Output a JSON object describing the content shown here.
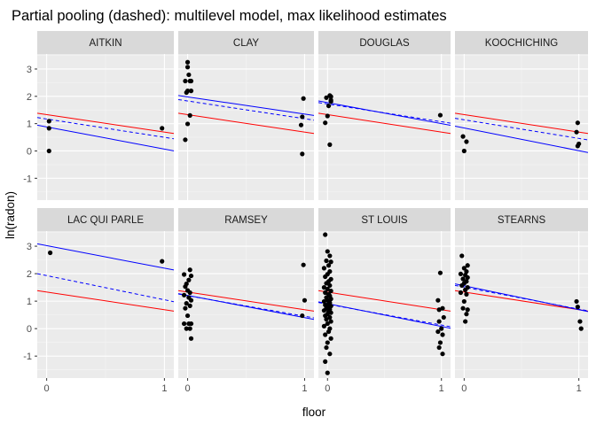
{
  "chart_data": {
    "type": "scatter",
    "title": "Partial pooling (dashed): multilevel model, max likelihood estimates",
    "xlabel": "floor",
    "ylabel": "ln(radon)",
    "xlim": [
      -0.08,
      1.08
    ],
    "ylim": [
      -1.8,
      3.55
    ],
    "x_ticks": [
      0,
      1
    ],
    "y_ticks": [
      -1,
      0,
      1,
      2,
      3
    ],
    "grid": true,
    "facet_layout": "2 rows x 4 columns, shared axes",
    "colors": {
      "points": "#000000",
      "complete_pooling": "#ff0000",
      "no_pooling": "#0000ff",
      "partial_pooling": "#0000ff",
      "panel_background": "#ebebeb",
      "strip_background": "#d9d9d9",
      "grid_major": "#ffffff"
    },
    "line_styles": {
      "complete_pooling": "solid",
      "no_pooling": "solid",
      "partial_pooling": "dashed"
    },
    "panels": [
      {
        "county": "AITKIN",
        "complete_pooling": [
          1.33,
          0.69
        ],
        "no_pooling": [
          0.88,
          0.07
        ],
        "partial_pooling": [
          1.17,
          0.5
        ],
        "points": [
          [
            0.02,
            1.09
          ],
          [
            0.02,
            0.83
          ],
          [
            0.02,
            0.0
          ],
          [
            0.98,
            0.83
          ]
        ]
      },
      {
        "county": "CLAY",
        "complete_pooling": [
          1.33,
          0.69
        ],
        "no_pooling": [
          1.98,
          1.35
        ],
        "partial_pooling": [
          1.83,
          1.18
        ],
        "points": [
          [
            0.0,
            3.25
          ],
          [
            0.0,
            3.07
          ],
          [
            0.01,
            2.79
          ],
          [
            0.02,
            2.56
          ],
          [
            0.03,
            2.56
          ],
          [
            -0.02,
            2.56
          ],
          [
            0.0,
            2.2
          ],
          [
            0.03,
            2.2
          ],
          [
            -0.01,
            2.14
          ],
          [
            0.02,
            1.3
          ],
          [
            0.0,
            0.99
          ],
          [
            -0.02,
            0.41
          ],
          [
            0.99,
            1.92
          ],
          [
            0.98,
            1.25
          ],
          [
            0.97,
            0.95
          ],
          [
            0.98,
            -0.11
          ]
        ]
      },
      {
        "county": "DOUGLAS",
        "complete_pooling": [
          1.33,
          0.69
        ],
        "no_pooling": [
          1.77,
          1.0
        ],
        "partial_pooling": [
          1.72,
          1.07
        ],
        "points": [
          [
            0.02,
            2.03
          ],
          [
            0.03,
            1.99
          ],
          [
            -0.01,
            1.95
          ],
          [
            0.03,
            1.86
          ],
          [
            0.03,
            1.81
          ],
          [
            0.01,
            1.65
          ],
          [
            0.0,
            1.28
          ],
          [
            -0.02,
            1.03
          ],
          [
            0.02,
            0.23
          ],
          [
            0.99,
            1.31
          ]
        ]
      },
      {
        "county": "KOOCHICHING",
        "complete_pooling": [
          1.33,
          0.69
        ],
        "no_pooling": [
          0.84,
          0.01
        ],
        "partial_pooling": [
          1.14,
          0.46
        ],
        "points": [
          [
            -0.01,
            0.53
          ],
          [
            0.02,
            0.34
          ],
          [
            0.0,
            0.0
          ],
          [
            0.99,
            1.03
          ],
          [
            0.98,
            0.69
          ],
          [
            1.0,
            0.26
          ],
          [
            0.99,
            0.18
          ]
        ]
      },
      {
        "county": "LAC QUI PARLE",
        "complete_pooling": [
          1.33,
          0.69
        ],
        "no_pooling": [
          3.02,
          2.2
        ],
        "partial_pooling": [
          1.93,
          1.05
        ],
        "points": [
          [
            0.03,
            2.76
          ],
          [
            0.98,
            2.45
          ]
        ]
      },
      {
        "county": "RAMSEY",
        "complete_pooling": [
          1.33,
          0.69
        ],
        "no_pooling": [
          1.21,
          0.4
        ],
        "partial_pooling": [
          1.2,
          0.45
        ],
        "points": [
          [
            -0.03,
            1.97
          ],
          [
            0.02,
            2.14
          ],
          [
            -0.01,
            1.63
          ],
          [
            0.03,
            1.92
          ],
          [
            0.01,
            1.77
          ],
          [
            -0.02,
            1.53
          ],
          [
            0.0,
            1.39
          ],
          [
            0.02,
            1.31
          ],
          [
            -0.03,
            1.22
          ],
          [
            0.01,
            1.13
          ],
          [
            0.03,
            1.03
          ],
          [
            -0.01,
            0.92
          ],
          [
            0.02,
            0.83
          ],
          [
            -0.02,
            0.74
          ],
          [
            0.0,
            0.47
          ],
          [
            -0.03,
            0.18
          ],
          [
            0.01,
            0.18
          ],
          [
            0.03,
            0.18
          ],
          [
            -0.01,
            0.0
          ],
          [
            0.02,
            0.0
          ],
          [
            0.03,
            -0.36
          ],
          [
            0.99,
            2.32
          ],
          [
            1.0,
            1.03
          ],
          [
            0.98,
            0.47
          ]
        ]
      },
      {
        "county": "ST LOUIS",
        "complete_pooling": [
          1.33,
          0.69
        ],
        "no_pooling": [
          0.91,
          0.08
        ],
        "partial_pooling": [
          0.89,
          0.13
        ],
        "points": [
          [
            -0.02,
            3.42
          ],
          [
            0.0,
            2.81
          ],
          [
            0.02,
            2.65
          ],
          [
            -0.01,
            2.47
          ],
          [
            0.03,
            2.43
          ],
          [
            0.01,
            2.3
          ],
          [
            -0.03,
            2.2
          ],
          [
            0.02,
            2.08
          ],
          [
            0.0,
            1.98
          ],
          [
            -0.02,
            1.89
          ],
          [
            0.03,
            1.8
          ],
          [
            0.01,
            1.72
          ],
          [
            -0.01,
            1.65
          ],
          [
            0.02,
            1.57
          ],
          [
            -0.03,
            1.5
          ],
          [
            0.0,
            1.44
          ],
          [
            0.03,
            1.37
          ],
          [
            -0.02,
            1.31
          ],
          [
            0.01,
            1.25
          ],
          [
            0.02,
            1.19
          ],
          [
            -0.01,
            1.13
          ],
          [
            0.03,
            1.08
          ],
          [
            0.0,
            1.03
          ],
          [
            -0.03,
            0.99
          ],
          [
            0.02,
            0.94
          ],
          [
            0.01,
            0.9
          ],
          [
            -0.02,
            0.86
          ],
          [
            0.03,
            0.82
          ],
          [
            0.0,
            0.78
          ],
          [
            -0.01,
            0.74
          ],
          [
            0.02,
            0.7
          ],
          [
            -0.03,
            0.66
          ],
          [
            0.01,
            0.62
          ],
          [
            0.03,
            0.58
          ],
          [
            0.0,
            0.53
          ],
          [
            -0.02,
            0.47
          ],
          [
            0.02,
            0.41
          ],
          [
            -0.01,
            0.34
          ],
          [
            0.03,
            0.26
          ],
          [
            0.0,
            0.18
          ],
          [
            -0.03,
            0.09
          ],
          [
            0.02,
            0.0
          ],
          [
            0.01,
            -0.11
          ],
          [
            -0.02,
            -0.22
          ],
          [
            0.03,
            -0.36
          ],
          [
            0.0,
            -0.51
          ],
          [
            -0.01,
            -0.69
          ],
          [
            0.02,
            -0.92
          ],
          [
            -0.02,
            -1.2
          ],
          [
            0.0,
            -1.61
          ],
          [
            0.99,
            2.03
          ],
          [
            0.97,
            1.03
          ],
          [
            1.01,
            0.74
          ],
          [
            0.98,
            0.69
          ],
          [
            1.02,
            0.41
          ],
          [
            0.98,
            0.26
          ],
          [
            1.0,
            0.0
          ],
          [
            0.97,
            -0.11
          ],
          [
            1.01,
            -0.22
          ],
          [
            0.99,
            -0.51
          ],
          [
            0.98,
            -0.69
          ],
          [
            1.01,
            -0.92
          ]
        ]
      },
      {
        "county": "STEARNS",
        "complete_pooling": [
          1.33,
          0.69
        ],
        "no_pooling": [
          1.56,
          0.69
        ],
        "partial_pooling": [
          1.51,
          0.71
        ],
        "points": [
          [
            -0.02,
            2.65
          ],
          [
            0.03,
            2.3
          ],
          [
            0.0,
            2.2
          ],
          [
            0.02,
            2.08
          ],
          [
            -0.03,
            1.99
          ],
          [
            0.01,
            1.95
          ],
          [
            0.03,
            1.86
          ],
          [
            -0.01,
            1.81
          ],
          [
            0.02,
            1.72
          ],
          [
            0.0,
            1.65
          ],
          [
            -0.02,
            1.57
          ],
          [
            0.03,
            1.5
          ],
          [
            0.01,
            1.41
          ],
          [
            -0.03,
            1.31
          ],
          [
            0.02,
            1.25
          ],
          [
            0.0,
            0.99
          ],
          [
            -0.01,
            0.74
          ],
          [
            0.03,
            0.69
          ],
          [
            0.02,
            0.53
          ],
          [
            0.01,
            0.26
          ],
          [
            0.98,
            0.99
          ],
          [
            0.99,
            0.79
          ],
          [
            1.01,
            0.26
          ],
          [
            1.02,
            0.0
          ]
        ]
      }
    ]
  }
}
